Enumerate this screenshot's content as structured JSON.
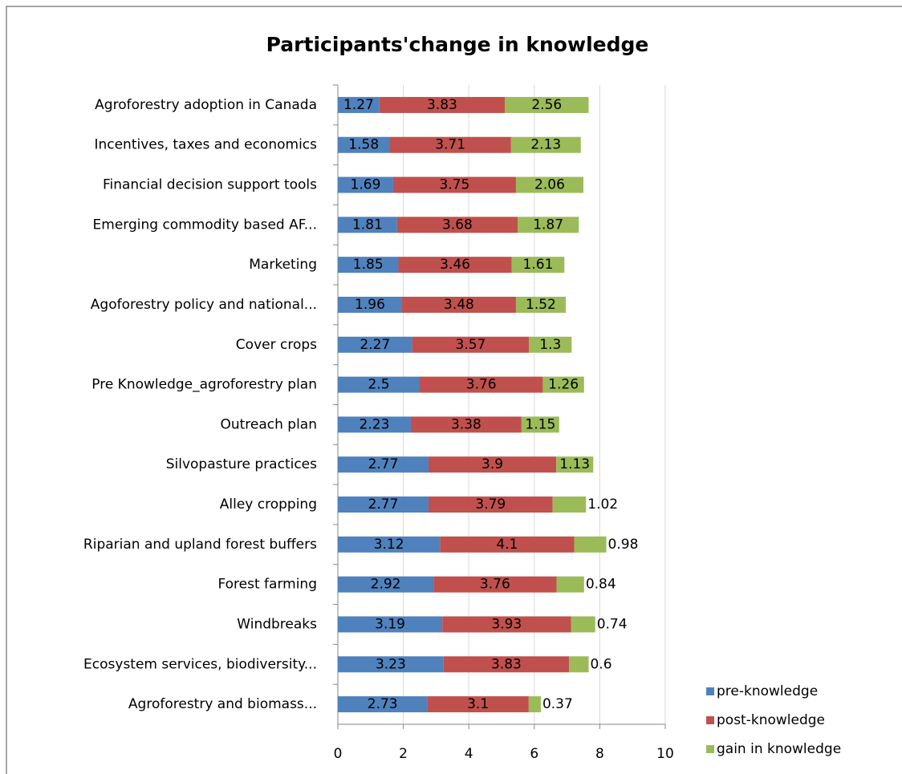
{
  "chart_data": {
    "type": "stacked-barh",
    "title": "Participants'change in knowledge",
    "categories": [
      "Agroforestry adoption in Canada",
      "Incentives, taxes and economics",
      "Financial decision support tools",
      "Emerging commodity based AF...",
      "Marketing",
      "Agoforestry policy and national...",
      "Cover crops",
      "Pre Knowledge_agroforestry plan",
      "Outreach plan",
      "Silvopasture practices",
      "Alley cropping",
      "Riparian and upland forest buffers",
      "Forest farming",
      "Windbreaks",
      "Ecosystem services, biodiversity...",
      "Agroforestry and biomass..."
    ],
    "series": [
      {
        "name": "pre-knowledge",
        "color": "#4f81bd",
        "values": [
          1.27,
          1.58,
          1.69,
          1.81,
          1.85,
          1.96,
          2.27,
          2.5,
          2.23,
          2.77,
          2.77,
          3.12,
          2.92,
          3.19,
          3.23,
          2.73
        ]
      },
      {
        "name": "post-knowledge",
        "color": "#c0504d",
        "values": [
          3.83,
          3.71,
          3.75,
          3.68,
          3.46,
          3.48,
          3.57,
          3.76,
          3.38,
          3.9,
          3.79,
          4.1,
          3.76,
          3.93,
          3.83,
          3.1
        ]
      },
      {
        "name": "gain in knowledge",
        "color": "#9bbb59",
        "values": [
          2.56,
          2.13,
          2.06,
          1.87,
          1.61,
          1.52,
          1.3,
          1.26,
          1.15,
          1.13,
          1.02,
          0.98,
          0.84,
          0.74,
          0.6,
          0.37
        ]
      }
    ],
    "xlim": [
      0,
      10
    ],
    "xticks": [
      0,
      2,
      4,
      6,
      8,
      10
    ],
    "grid": true,
    "legend": "lower right"
  }
}
